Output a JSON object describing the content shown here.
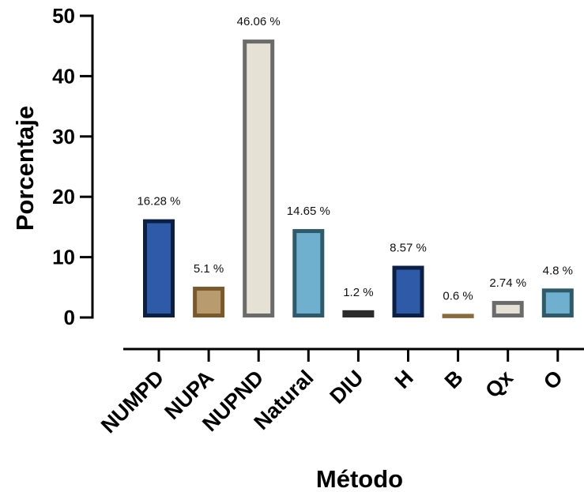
{
  "chart_data": {
    "type": "bar",
    "xlabel": "Método",
    "ylabel": "Porcentaje",
    "ylim": [
      0,
      50
    ],
    "yticks": [
      0,
      10,
      20,
      30,
      40,
      50
    ],
    "grid": false,
    "categories": [
      "NUMPD",
      "NUPA",
      "NUPND",
      "Natural",
      "DIU",
      "H",
      "B",
      "Qx",
      "O"
    ],
    "values": [
      16.28,
      5.1,
      46.06,
      14.65,
      1.2,
      8.57,
      0.6,
      2.74,
      4.8
    ],
    "value_labels": [
      "16.28 %",
      "5.1 %",
      "46.06 %",
      "14.65 %",
      "1.2 %",
      "8.57 %",
      "0.6 %",
      "2.74 %",
      "4.8 %"
    ],
    "colors": {
      "fill": [
        "#2e5aa8",
        "#b89b6e",
        "#e6e1d5",
        "#6fb0cf",
        "#2b2b2b",
        "#2e5aa8",
        "#8a6a3a",
        "#e6e1d5",
        "#6fb0cf"
      ],
      "stroke": [
        "#0c1f45",
        "#7a5a2c",
        "#6b6b6b",
        "#2f5a6a",
        "#2b2b2b",
        "#0c1f45",
        "#8a6a3a",
        "#6b6b6b",
        "#2f5a6a"
      ],
      "axis": "#000000"
    }
  }
}
